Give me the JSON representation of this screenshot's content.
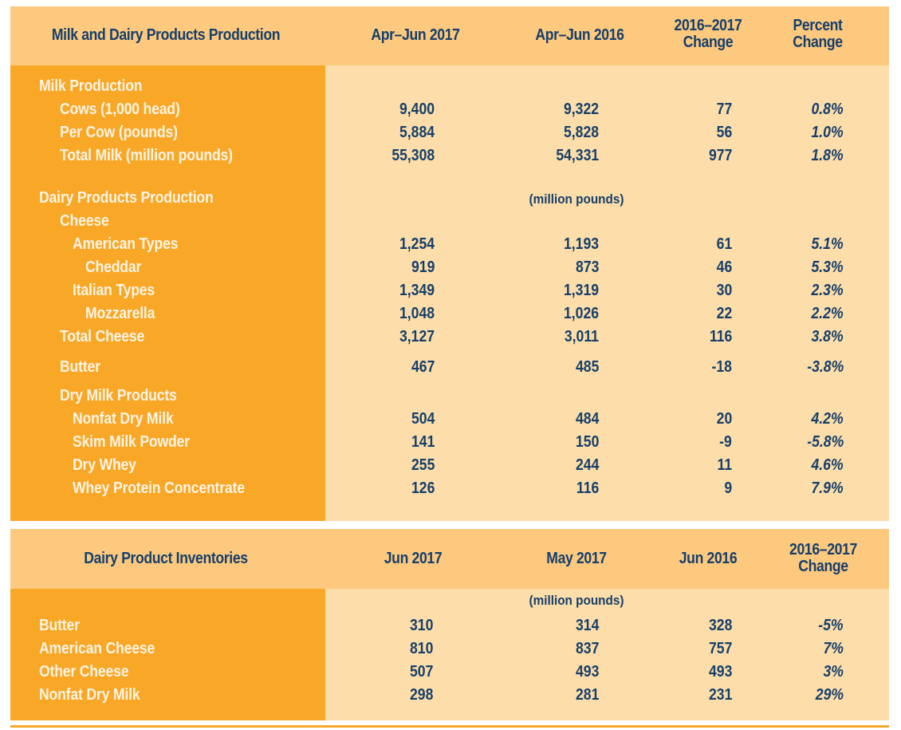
{
  "production": {
    "header": {
      "title": "Milk and Dairy Products Production",
      "col1": "Apr–Jun 2017",
      "col2": "Apr–Jun 2016",
      "col3_line1": "2016–2017",
      "col3_line2": "Change",
      "col4_line1": "Percent",
      "col4_line2": "Change"
    },
    "unit_note": "(million pounds)",
    "rows": [
      {
        "label": "Milk Production",
        "indent": 0,
        "v1": "",
        "v2": "",
        "v3": "",
        "v4": ""
      },
      {
        "label": "Cows (1,000 head)",
        "indent": 1,
        "v1": "9,400",
        "v2": "9,322",
        "v3": "77",
        "v4": "0.8%"
      },
      {
        "label": "Per Cow (pounds)",
        "indent": 1,
        "v1": "5,884",
        "v2": "5,828",
        "v3": "56",
        "v4": "1.0%"
      },
      {
        "label": "Total Milk (million pounds)",
        "indent": 1,
        "v1": "55,308",
        "v2": "54,331",
        "v3": "977",
        "v4": "1.8%"
      },
      {
        "label": "Dairy Products Production",
        "indent": 0,
        "v1": "",
        "v2": "",
        "v3": "",
        "v4": ""
      },
      {
        "label": "Cheese",
        "indent": 1,
        "v1": "",
        "v2": "",
        "v3": "",
        "v4": ""
      },
      {
        "label": "American Types",
        "indent": 2,
        "v1": "1,254",
        "v2": "1,193",
        "v3": "61",
        "v4": "5.1%"
      },
      {
        "label": "Cheddar",
        "indent": 3,
        "v1": "919",
        "v2": "873",
        "v3": "46",
        "v4": "5.3%"
      },
      {
        "label": "Italian Types",
        "indent": 2,
        "v1": "1,349",
        "v2": "1,319",
        "v3": "30",
        "v4": "2.3%"
      },
      {
        "label": "Mozzarella",
        "indent": 3,
        "v1": "1,048",
        "v2": "1,026",
        "v3": "22",
        "v4": "2.2%"
      },
      {
        "label": "Total Cheese",
        "indent": 1,
        "v1": "3,127",
        "v2": "3,011",
        "v3": "116",
        "v4": "3.8%"
      },
      {
        "label": "Butter",
        "indent": 1,
        "v1": "467",
        "v2": "485",
        "v3": "-18",
        "v4": "-3.8%"
      },
      {
        "label": "Dry Milk Products",
        "indent": 1,
        "v1": "",
        "v2": "",
        "v3": "",
        "v4": ""
      },
      {
        "label": "Nonfat Dry Milk",
        "indent": 2,
        "v1": "504",
        "v2": "484",
        "v3": "20",
        "v4": "4.2%"
      },
      {
        "label": "Skim Milk Powder",
        "indent": 2,
        "v1": "141",
        "v2": "150",
        "v3": "-9",
        "v4": "-5.8%"
      },
      {
        "label": "Dry Whey",
        "indent": 2,
        "v1": "255",
        "v2": "244",
        "v3": "11",
        "v4": "4.6%"
      },
      {
        "label": "Whey Protein Concentrate",
        "indent": 2,
        "v1": "126",
        "v2": "116",
        "v3": "9",
        "v4": "7.9%"
      }
    ]
  },
  "inventories": {
    "header": {
      "title": "Dairy Product Inventories",
      "col1": "Jun 2017",
      "col2": "May 2017",
      "col3": "Jun 2016",
      "col4_line1": "2016–2017",
      "col4_line2": "Change"
    },
    "unit_note": "(million pounds)",
    "rows": [
      {
        "label": "Butter",
        "v1": "310",
        "v2": "314",
        "v3": "328",
        "v4": "-5%"
      },
      {
        "label": "American Cheese",
        "v1": "810",
        "v2": "837",
        "v3": "757",
        "v4": "7%"
      },
      {
        "label": "Other Cheese",
        "v1": "507",
        "v2": "493",
        "v3": "493",
        "v4": "3%"
      },
      {
        "label": "Nonfat Dry Milk",
        "v1": "298",
        "v2": "281",
        "v3": "231",
        "v4": "29%"
      }
    ]
  },
  "colors": {
    "header_bg": "#fdc97f",
    "label_col_bg": "#f9a727",
    "body_bg": "#fddeaa",
    "value_text": "#163f6b",
    "label_text": "#fdf4e3"
  }
}
